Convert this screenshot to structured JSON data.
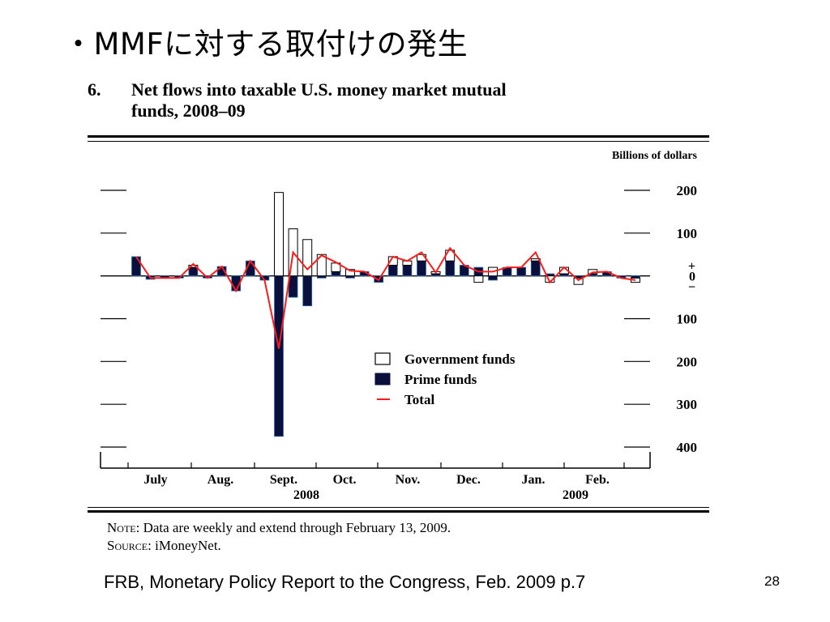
{
  "slide": {
    "title": "・MMFに対する取付けの発生",
    "citation": "FRB, Monetary Policy Report to the Congress, Feb. 2009 p.7",
    "page_number": "28"
  },
  "figure": {
    "number": "6.",
    "title_line1": "Net flows into taxable U.S. money market mutual",
    "title_line2": "funds, 2008–09",
    "note_label": "Note:",
    "note_text": "Data are weekly and extend through February 13, 2009.",
    "source_label": "Source:",
    "source_text": "iMoneyNet."
  },
  "chart_data": {
    "type": "bar",
    "stacked": true,
    "unit_label": "Billions of dollars",
    "ylim": [
      -400,
      200
    ],
    "yticks": [
      {
        "value": 200,
        "label": "200"
      },
      {
        "value": 100,
        "label": "100"
      },
      {
        "value": 0,
        "label": "+\n0\n−"
      },
      {
        "value": -100,
        "label": "100"
      },
      {
        "value": -200,
        "label": "200"
      },
      {
        "value": -300,
        "label": "300"
      },
      {
        "value": -400,
        "label": "400"
      }
    ],
    "month_labels": [
      "July",
      "Aug.",
      "Sept.",
      "Oct.",
      "Nov.",
      "Dec.",
      "Jan.",
      "Feb."
    ],
    "year_labels": [
      "2008",
      "2009"
    ],
    "legend": [
      "Government funds",
      "Prime funds",
      "Total"
    ],
    "colors": {
      "prime": "#0a0f3c",
      "government": "#ffffff",
      "total": "#ff1a1a"
    },
    "series": [
      {
        "name": "Prime funds",
        "values": [
          45,
          -8,
          -5,
          -5,
          20,
          -5,
          22,
          -35,
          35,
          -10,
          -375,
          -50,
          -70,
          -5,
          10,
          -5,
          10,
          -15,
          25,
          25,
          35,
          5,
          35,
          25,
          20,
          -10,
          20,
          20,
          35,
          5,
          5,
          -5,
          5,
          10,
          -5,
          -5
        ]
      },
      {
        "name": "Government funds",
        "values": [
          0,
          0,
          0,
          0,
          5,
          0,
          0,
          0,
          0,
          0,
          195,
          110,
          85,
          50,
          20,
          15,
          0,
          0,
          20,
          10,
          15,
          5,
          25,
          0,
          -15,
          20,
          0,
          0,
          5,
          -15,
          15,
          -15,
          10,
          0,
          0,
          -10
        ]
      },
      {
        "name": "Total",
        "values": [
          45,
          -5,
          -5,
          -5,
          28,
          -5,
          22,
          -35,
          35,
          -10,
          -170,
          55,
          15,
          48,
          32,
          12,
          10,
          -10,
          45,
          35,
          55,
          8,
          65,
          25,
          10,
          10,
          20,
          20,
          55,
          -15,
          20,
          -10,
          8,
          10,
          -5,
          -10
        ]
      }
    ]
  }
}
